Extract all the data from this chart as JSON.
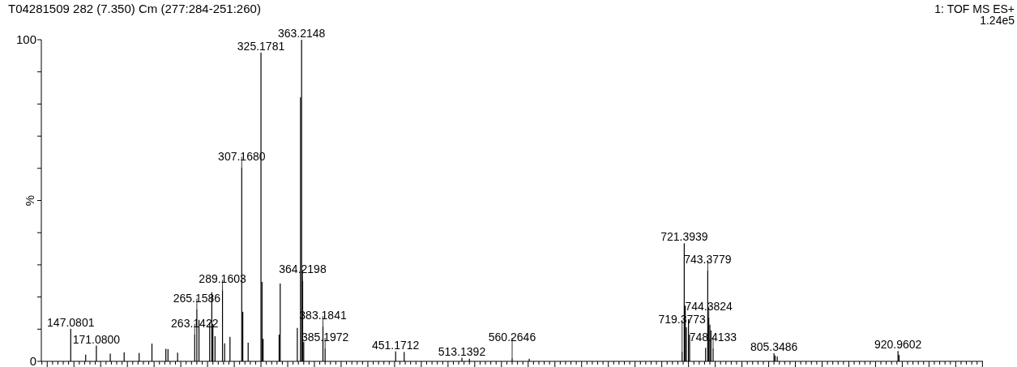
{
  "chart_data": {
    "type": "bar",
    "title": "T04281509 282 (7.350) Cm (277:284-251:260)",
    "ylabel": "%",
    "categories": [
      null,
      null,
      null,
      null,
      null,
      null,
      null,
      null,
      null,
      null,
      null,
      null,
      null,
      null,
      null,
      null,
      null,
      null,
      null,
      null,
      null,
      null,
      null,
      null,
      null,
      null,
      null,
      null,
      null,
      null,
      null,
      null,
      null,
      null,
      null,
      null,
      null,
      null,
      null,
      null,
      null,
      null,
      null,
      null,
      null,
      null,
      null,
      null,
      null,
      null,
      null,
      null,
      null,
      null,
      null,
      null,
      null,
      null,
      null,
      null,
      null,
      null,
      null,
      null,
      null,
      null,
      null,
      null,
      null,
      null,
      null,
      null,
      null,
      null,
      null,
      null,
      null,
      null,
      null,
      null,
      null,
      null,
      null,
      null,
      null,
      null,
      null,
      null,
      null,
      null,
      null,
      null,
      null,
      null,
      null,
      null,
      null,
      null,
      null,
      null,
      null,
      null,
      null,
      null,
      null,
      null,
      null,
      null,
      null,
      null,
      null,
      null,
      null,
      null,
      null,
      null,
      null,
      null,
      null,
      null,
      null,
      null,
      null,
      null,
      null,
      null,
      null,
      null,
      null,
      null,
      null,
      null,
      null,
      null,
      null,
      null,
      null,
      null,
      null,
      null,
      null,
      null,
      null,
      null,
      null,
      null,
      null,
      null,
      null,
      null,
      null,
      null,
      null,
      null,
      null,
      null,
      null,
      null,
      null,
      null,
      null,
      null,
      null,
      null,
      null,
      null,
      null,
      null,
      null,
      null,
      null,
      null,
      null,
      null,
      null,
      null,
      null,
      null,
      null,
      null,
      null,
      null,
      null,
      null,
      null,
      null,
      null,
      null,
      null,
      null,
      null,
      null,
      null,
      null,
      null,
      null,
      null,
      null,
      null,
      null,
      null,
      null,
      null,
      null,
      null,
      null,
      null,
      null,
      null,
      null,
      null,
      null,
      null,
      null,
      null,
      null,
      null,
      null,
      null,
      null,
      null,
      null,
      null,
      null,
      null,
      null,
      null,
      null,
      null,
      null,
      null,
      null,
      null,
      null,
      null,
      null,
      null,
      null,
      null,
      null,
      null,
      null,
      null,
      null,
      null,
      null,
      null,
      null,
      null,
      null,
      null,
      null,
      null,
      null,
      null,
      null,
      null,
      null,
      null,
      null,
      null,
      null,
      null,
      null,
      null,
      null,
      null,
      null,
      null,
      null,
      null,
      null,
      null,
      null,
      null,
      null,
      null,
      null,
      null,
      null,
      null,
      null,
      null,
      null,
      null,
      null,
      null,
      null,
      null,
      null,
      null,
      null,
      null,
      null,
      null,
      null,
      null,
      null,
      null,
      null,
      null,
      null,
      null,
      null,
      null,
      null,
      null,
      null,
      null,
      null,
      null,
      null,
      null,
      null,
      null,
      null,
      null,
      null,
      null,
      null,
      null,
      null,
      null,
      null,
      null,
      null,
      null,
      null,
      null,
      null,
      null,
      null,
      null,
      null,
      null,
      null,
      null,
      null,
      null,
      null,
      null,
      null,
      null,
      null,
      null,
      null,
      null,
      null,
      null,
      null,
      null,
      null,
      null,
      null,
      null,
      null,
      null,
      null,
      null,
      null,
      null,
      null,
      null,
      null,
      null,
      null,
      null,
      null,
      null,
      null,
      null,
      null,
      null,
      null,
      null,
      null,
      null,
      null,
      null,
      null,
      null,
      null,
      null,
      null,
      null,
      null,
      null,
      null,
      null,
      null,
      null,
      null,
      null,
      null,
      null,
      null,
      null,
      null,
      null,
      null,
      null,
      null,
      null,
      null,
      null,
      null,
      null,
      null,
      null,
      null,
      null,
      null,
      null,
      null,
      null,
      null,
      null,
      null,
      null,
      null,
      null,
      null,
      null,
      null,
      null,
      null,
      null,
      null,
      null,
      null,
      null,
      null,
      null,
      null,
      null,
      null,
      null,
      null,
      null,
      null,
      null,
      null,
      null,
      null,
      null,
      null,
      null,
      null,
      null,
      null,
      null,
      null,
      null,
      null,
      null,
      null,
      null,
      null,
      null,
      null,
      null,
      null,
      null,
      null,
      null,
      null,
      null,
      null,
      null,
      null,
      null,
      null,
      null,
      null,
      null,
      null,
      null,
      null,
      null,
      null,
      null,
      null,
      null,
      null,
      null,
      null,
      null,
      null,
      null,
      null,
      null,
      null,
      null,
      null,
      null,
      null,
      null,
      null,
      null,
      null,
      null,
      null,
      null,
      null,
      null,
      null,
      null,
      null,
      null,
      null,
      null,
      null,
      null,
      null,
      null,
      null,
      null,
      null,
      null,
      null,
      null,
      null,
      null,
      null,
      null,
      null,
      null,
      null,
      null,
      null,
      null,
      null,
      null,
      null,
      null,
      null,
      null,
      null,
      null,
      null,
      null,
      null,
      null,
      null,
      null,
      null,
      null,
      null,
      null,
      null,
      null,
      null,
      null,
      null,
      null,
      null,
      null,
      null,
      null,
      null,
      null,
      null,
      null,
      null,
      null,
      null,
      null,
      null,
      null,
      null,
      null,
      null,
      null,
      null,
      null,
      null,
      null,
      null,
      null,
      null,
      null,
      null,
      null,
      null,
      null,
      null,
      null,
      null,
      null,
      null,
      null,
      null,
      null,
      null,
      null,
      null,
      null,
      null,
      null,
      null,
      null,
      null,
      null,
      null,
      null,
      null,
      null,
      null,
      null,
      null,
      null,
      null,
      null,
      null,
      null,
      null,
      null,
      null,
      null,
      null,
      null,
      null,
      null,
      null,
      null,
      null,
      null,
      null,
      null,
      null,
      null,
      null,
      null,
      null,
      null,
      null,
      null,
      null,
      null,
      null,
      null,
      null,
      null,
      null,
      null,
      null,
      null,
      null,
      null,
      null,
      null,
      null,
      null,
      null,
      null,
      null,
      null,
      null,
      null,
      null,
      null,
      null,
      null,
      null,
      null,
      null,
      null,
      null,
      null,
      null,
      null,
      null,
      null,
      null,
      null,
      null,
      null,
      null,
      null,
      null,
      null,
      null,
      null,
      null,
      null,
      null,
      null,
      null,
      null,
      null,
      null,
      null,
      null,
      null,
      null,
      null,
      null,
      null,
      null,
      null,
      null,
      null,
      null,
      null,
      null,
      null,
      null,
      null,
      null,
      null,
      null,
      null,
      null,
      null,
      null,
      null,
      null,
      null,
      null,
      null,
      null,
      null,
      null,
      null,
      null,
      null,
      null,
      null,
      null,
      null,
      null,
      null,
      null,
      null,
      null,
      null,
      null,
      null,
      null,
      null,
      null,
      null,
      null,
      null,
      null,
      null,
      null,
      null,
      null,
      null,
      null,
      null,
      null,
      null,
      null,
      null,
      null,
      null,
      null,
      null,
      null,
      null,
      null,
      null,
      null,
      null,
      null,
      null,
      null,
      null,
      null,
      null,
      null,
      null,
      null,
      null,
      null,
      null,
      null,
      null,
      null,
      null,
      null,
      null,
      null,
      null,
      null,
      null,
      null,
      null,
      null,
      null,
      null,
      null,
      null,
      null,
      null,
      null,
      null,
      null,
      null,
      null,
      null,
      null,
      null,
      null,
      null,
      null,
      null,
      null,
      null,
      null,
      null,
      null,
      null,
      null,
      null,
      null,
      null,
      null,
      null,
      null,
      null,
      null,
      null,
      null,
      null,
      null,
      null,
      null,
      null,
      null,
      null,
      null,
      null,
      null,
      null,
      null,
      null,
      null,
      null,
      null,
      null,
      null,
      null,
      null,
      null,
      null,
      null,
      null,
      null,
      null,
      null,
      null,
      null,
      null,
      null,
      null,
      null,
      null,
      null,
      null,
      null,
      null,
      null,
      null,
      null,
      null,
      null,
      null,
      null,
      null,
      null,
      null,
      null,
      null,
      null,
      null,
      null,
      null,
      null
    ],
    "values": [
      0,
      0,
      0,
      0,
      0,
      0,
      0,
      0,
      0,
      0,
      0,
      0,
      0,
      0,
      0,
      0,
      0,
      0,
      0,
      0,
      0,
      0,
      0,
      0,
      0,
      0,
      0,
      10.1,
      0,
      0,
      0,
      0,
      0,
      0,
      0,
      0,
      0,
      0,
      0,
      0,
      0,
      2.1,
      0,
      0,
      0,
      0,
      0,
      0,
      0,
      0,
      0,
      4.9,
      0,
      0,
      0,
      0,
      0,
      0,
      0,
      0,
      0,
      0,
      0,
      0,
      2.4,
      0,
      0,
      0,
      0,
      0,
      0,
      0,
      0,
      0,
      0,
      0,
      0,
      2.8,
      0,
      0,
      0,
      0,
      0,
      0,
      0,
      0,
      0,
      0,
      0,
      0,
      0,
      2.6,
      0,
      0,
      0,
      0,
      0,
      0,
      0,
      0,
      0,
      0,
      0,
      5.5,
      0,
      0,
      0,
      0,
      0,
      0,
      0,
      0,
      0,
      0,
      0,
      0,
      3.9,
      0,
      3.8,
      0,
      0,
      0,
      0,
      0,
      0,
      0,
      0,
      2.7,
      0,
      0,
      0,
      0,
      0,
      0,
      0,
      0,
      0,
      0,
      0,
      0,
      0,
      0,
      0,
      8.4,
      0,
      16.2,
      0,
      12.9,
      0,
      0,
      0,
      0,
      0,
      0,
      0,
      0,
      0,
      12.1,
      0,
      21.5,
      11.6,
      0,
      7.8,
      0,
      0,
      0,
      0,
      0,
      0,
      22.1,
      0,
      5.6,
      0,
      0,
      0,
      0,
      7.6,
      0,
      0,
      0,
      0,
      0,
      0,
      0,
      0,
      0,
      0,
      60.3,
      15.4,
      0,
      0,
      0,
      0,
      5.8,
      0,
      0,
      0,
      0,
      0,
      0,
      0,
      0,
      0,
      0,
      0,
      96.0,
      24.7,
      7.0,
      0,
      0,
      0,
      0,
      0,
      0,
      0,
      0,
      0,
      0,
      0,
      0,
      0,
      0,
      8.3,
      24.2,
      0,
      0,
      0,
      0,
      0,
      0,
      0,
      0,
      0,
      0,
      0,
      0,
      0,
      0,
      0,
      10.4,
      0,
      0,
      82.1,
      100,
      25.1,
      6.0,
      0,
      0,
      0,
      0,
      0,
      0,
      0,
      0,
      0,
      0,
      0,
      0,
      0,
      0,
      0,
      0,
      0,
      10.8,
      0,
      4.0,
      0,
      0,
      0,
      0,
      0,
      0,
      0,
      0,
      0,
      0,
      0,
      0,
      0,
      0,
      0,
      0,
      0,
      0,
      0,
      0,
      0,
      0,
      0,
      0,
      0,
      0,
      0,
      0,
      0,
      0,
      0,
      0,
      0,
      0,
      0,
      0,
      0,
      0,
      0,
      0,
      0,
      0,
      0,
      0,
      0,
      0,
      0,
      0,
      0,
      0,
      0,
      0,
      0,
      0,
      0,
      0,
      0,
      0,
      0,
      0,
      0,
      0,
      0,
      0,
      0,
      3.1,
      0,
      0,
      0,
      0,
      0,
      0,
      0,
      2.9,
      0,
      0,
      0,
      0,
      0,
      0,
      0,
      0,
      0,
      0,
      0,
      0,
      0,
      0,
      0,
      0,
      0,
      0,
      0,
      0,
      0,
      0,
      0,
      0,
      0,
      0,
      0,
      0,
      0,
      0,
      0,
      0,
      0,
      0,
      0,
      0,
      0,
      0,
      0,
      0,
      0,
      0,
      0,
      0,
      0,
      0,
      0,
      0,
      0,
      0,
      0,
      0,
      0,
      1.1,
      0,
      0,
      0,
      0,
      0,
      0,
      0.8,
      0,
      0,
      0,
      0,
      0,
      0,
      0,
      0,
      0,
      0,
      0,
      0,
      0,
      0,
      0,
      0,
      0,
      0,
      0,
      0,
      0,
      0,
      0,
      0,
      0,
      0,
      0,
      0,
      0,
      0,
      0,
      0,
      0,
      0,
      0,
      0,
      0,
      0,
      0,
      1.0,
      0,
      0,
      0,
      0,
      0,
      0,
      0,
      0,
      0,
      0,
      0,
      0,
      0,
      0,
      0,
      0.8,
      0,
      0,
      0,
      0,
      0,
      0,
      0,
      0,
      0,
      0,
      0,
      0,
      0,
      0,
      0,
      0,
      0,
      0,
      0,
      0,
      0,
      0,
      0,
      0,
      0,
      0,
      0,
      0,
      0,
      0,
      0,
      0,
      0,
      0,
      0,
      0,
      0,
      0,
      0,
      0,
      0,
      0,
      0,
      0,
      0,
      0,
      0,
      0,
      0,
      0,
      0,
      0,
      0,
      0,
      0,
      0,
      0,
      0,
      0,
      0,
      0,
      0,
      0,
      0,
      0,
      0,
      0,
      0,
      0,
      0,
      0,
      0,
      0,
      0,
      0,
      0,
      0,
      0,
      0,
      0,
      0,
      0,
      0,
      0,
      0,
      0,
      0,
      0,
      0,
      0,
      0,
      0,
      0,
      0,
      0,
      0,
      0,
      0,
      0,
      0,
      0,
      0,
      0,
      0,
      0,
      0,
      0,
      0,
      0,
      0,
      0,
      0,
      0,
      0,
      0,
      0,
      0,
      0,
      0,
      0,
      0,
      0,
      0,
      0,
      0,
      0,
      0,
      0,
      0,
      0,
      0,
      0,
      0,
      0,
      0,
      0,
      0,
      0,
      0,
      0,
      0,
      0,
      3.0,
      0,
      36.7,
      17.3,
      10.6,
      0,
      13.1,
      8.3,
      0,
      0,
      0,
      0,
      0,
      0,
      0,
      0,
      0,
      0,
      0,
      0,
      0,
      0,
      4.2,
      0,
      28.2,
      13.7,
      11.4,
      9.6,
      0,
      4.1,
      0,
      0,
      0,
      0,
      0,
      0,
      0,
      0,
      0,
      0,
      0,
      0,
      0,
      0,
      0,
      0,
      0,
      0,
      0,
      0,
      0,
      0,
      0,
      0,
      0,
      0,
      0,
      0,
      0,
      0,
      0,
      0,
      0,
      0,
      0,
      0,
      0,
      0,
      0,
      0,
      0,
      0,
      0,
      0,
      0,
      0,
      0,
      0,
      0,
      0,
      0,
      0,
      0,
      0,
      0,
      0,
      2.5,
      1.8,
      0,
      1.5,
      0,
      0,
      0,
      0,
      0,
      0,
      0,
      0,
      0,
      0,
      0,
      0,
      0,
      0,
      0,
      0,
      0,
      0,
      0,
      0,
      0,
      0,
      0,
      0,
      0,
      0,
      0,
      0,
      0,
      0,
      0,
      0,
      0,
      0,
      0,
      0,
      0,
      0,
      0,
      0,
      0,
      0,
      0,
      0,
      0,
      0,
      0,
      0,
      0,
      0,
      0,
      0,
      0,
      0,
      0,
      0,
      0,
      0,
      0,
      0,
      0,
      0,
      0,
      0,
      0,
      0,
      0,
      0,
      0,
      0,
      0,
      0,
      0,
      0,
      0,
      0,
      0,
      0,
      0,
      0,
      0,
      0,
      0,
      0,
      0,
      0,
      0,
      0,
      0,
      0,
      0,
      0,
      0,
      0,
      0,
      0,
      0,
      0,
      0,
      0,
      0,
      0,
      0,
      0,
      0,
      0,
      0,
      0,
      0,
      0,
      0,
      0,
      3.2,
      2.0,
      0,
      0,
      0,
      0,
      0,
      0,
      0,
      0,
      0,
      0,
      0,
      0,
      0,
      0,
      0,
      0,
      0,
      0,
      0,
      0,
      0,
      0,
      0,
      0,
      0,
      0,
      0,
      0,
      0,
      0,
      0,
      0,
      0,
      0,
      0,
      0,
      0,
      0,
      0,
      0,
      0,
      0,
      0,
      0,
      0,
      0,
      0,
      0,
      0,
      0,
      0,
      0,
      0,
      0,
      0,
      0,
      0,
      0,
      0,
      0,
      0,
      0,
      0,
      0,
      0,
      0,
      0,
      0,
      0,
      0,
      0,
      0,
      0,
      0,
      0,
      0,
      0,
      0
    ],
    "color": "#000000",
    "ylim": [
      0,
      100
    ],
    "tick_labels": "y",
    "yticks": [
      0,
      {
        "value": 10,
        "label": null
      },
      {
        "value": 20,
        "label": null
      },
      {
        "value": 30,
        "label": null
      },
      {
        "value": 40,
        "label": null
      },
      {
        "value": 50,
        "label": null
      },
      {
        "value": 60,
        "label": null
      },
      {
        "value": 70,
        "label": null
      },
      {
        "value": 80,
        "label": null
      },
      {
        "value": 90,
        "label": null
      },
      100
    ],
    "annotations": [
      "1: TOF MS ES+",
      "1.24e5",
      {
        "text": "147.0801",
        "y": 10.1
      },
      {
        "text": "171.0800",
        "y": 4.9
      },
      {
        "text": "263.1422",
        "y": 8.4
      },
      {
        "text": "265.1586",
        "y": 16.2
      },
      {
        "text": "289.1603",
        "y": 22.1
      },
      {
        "text": "307.1680",
        "y": 60.3
      },
      {
        "text": "325.1781",
        "y": 96.0
      },
      {
        "text": "363.2148",
        "y": 100
      },
      {
        "text": "364.2198",
        "y": 25.1
      },
      {
        "text": "383.1841",
        "y": 10.8
      },
      {
        "text": "385.1972",
        "y": 4.0
      },
      {
        "text": "451.1712",
        "y": 3.1
      },
      {
        "text": "513.1392",
        "y": 1.1
      },
      {
        "text": "560.2646",
        "y": 1.0
      },
      {
        "text": "719.3773",
        "y": 3.0
      },
      {
        "text": "721.3939",
        "y": 36.7
      },
      {
        "text": "743.3779",
        "y": 28.2
      },
      {
        "text": "744.3824",
        "y": 13.7
      },
      {
        "text": "748.4133",
        "y": 4.1
      },
      {
        "text": "805.3486",
        "y": 2.5
      },
      {
        "text": "920.9602",
        "y": 3.2
      }
    ]
  }
}
